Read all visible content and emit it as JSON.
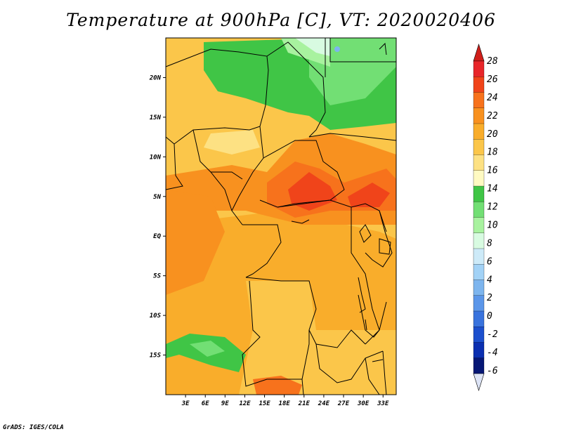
{
  "title": "Temperature at 900hPa [C], VT: 2020020406",
  "credit": "GrADS: IGES/COLA",
  "map": {
    "lon_range": [
      0,
      35
    ],
    "lat_range": [
      -20,
      25
    ],
    "lon_ticks": [
      {
        "lon": 3,
        "label": "3E"
      },
      {
        "lon": 6,
        "label": "6E"
      },
      {
        "lon": 9,
        "label": "9E"
      },
      {
        "lon": 12,
        "label": "12E"
      },
      {
        "lon": 15,
        "label": "15E"
      },
      {
        "lon": 18,
        "label": "18E"
      },
      {
        "lon": 21,
        "label": "21E"
      },
      {
        "lon": 24,
        "label": "24E"
      },
      {
        "lon": 27,
        "label": "27E"
      },
      {
        "lon": 30,
        "label": "30E"
      },
      {
        "lon": 33,
        "label": "33E"
      }
    ],
    "lat_ticks": [
      {
        "lat": 20,
        "label": "20N"
      },
      {
        "lat": 15,
        "label": "15N"
      },
      {
        "lat": 10,
        "label": "10N"
      },
      {
        "lat": 5,
        "label": "5N"
      },
      {
        "lat": 0,
        "label": "EQ"
      },
      {
        "lat": -5,
        "label": "5S"
      },
      {
        "lat": -10,
        "label": "10S"
      },
      {
        "lat": -15,
        "label": "15S"
      }
    ]
  },
  "colorbar": {
    "labels": [
      "28",
      "26",
      "24",
      "22",
      "20",
      "18",
      "16",
      "14",
      "12",
      "10",
      "8",
      "6",
      "4",
      "2",
      "0",
      "-2",
      "-4",
      "-6"
    ],
    "colors": [
      "#e8262a",
      "#f0441a",
      "#f7721c",
      "#f8911f",
      "#f9ad2b",
      "#fbc64a",
      "#fde183",
      "#fffac2",
      "#40c546",
      "#72df74",
      "#a8f29f",
      "#d8fbe1",
      "#cdeaf8",
      "#a2d2f6",
      "#7db5ee",
      "#5b96e9",
      "#3973dd",
      "#1c4fcd",
      "#0b2fb0",
      "#061775"
    ],
    "top_color": "#d01f1a",
    "bottom_color": "#dde4f6"
  }
}
